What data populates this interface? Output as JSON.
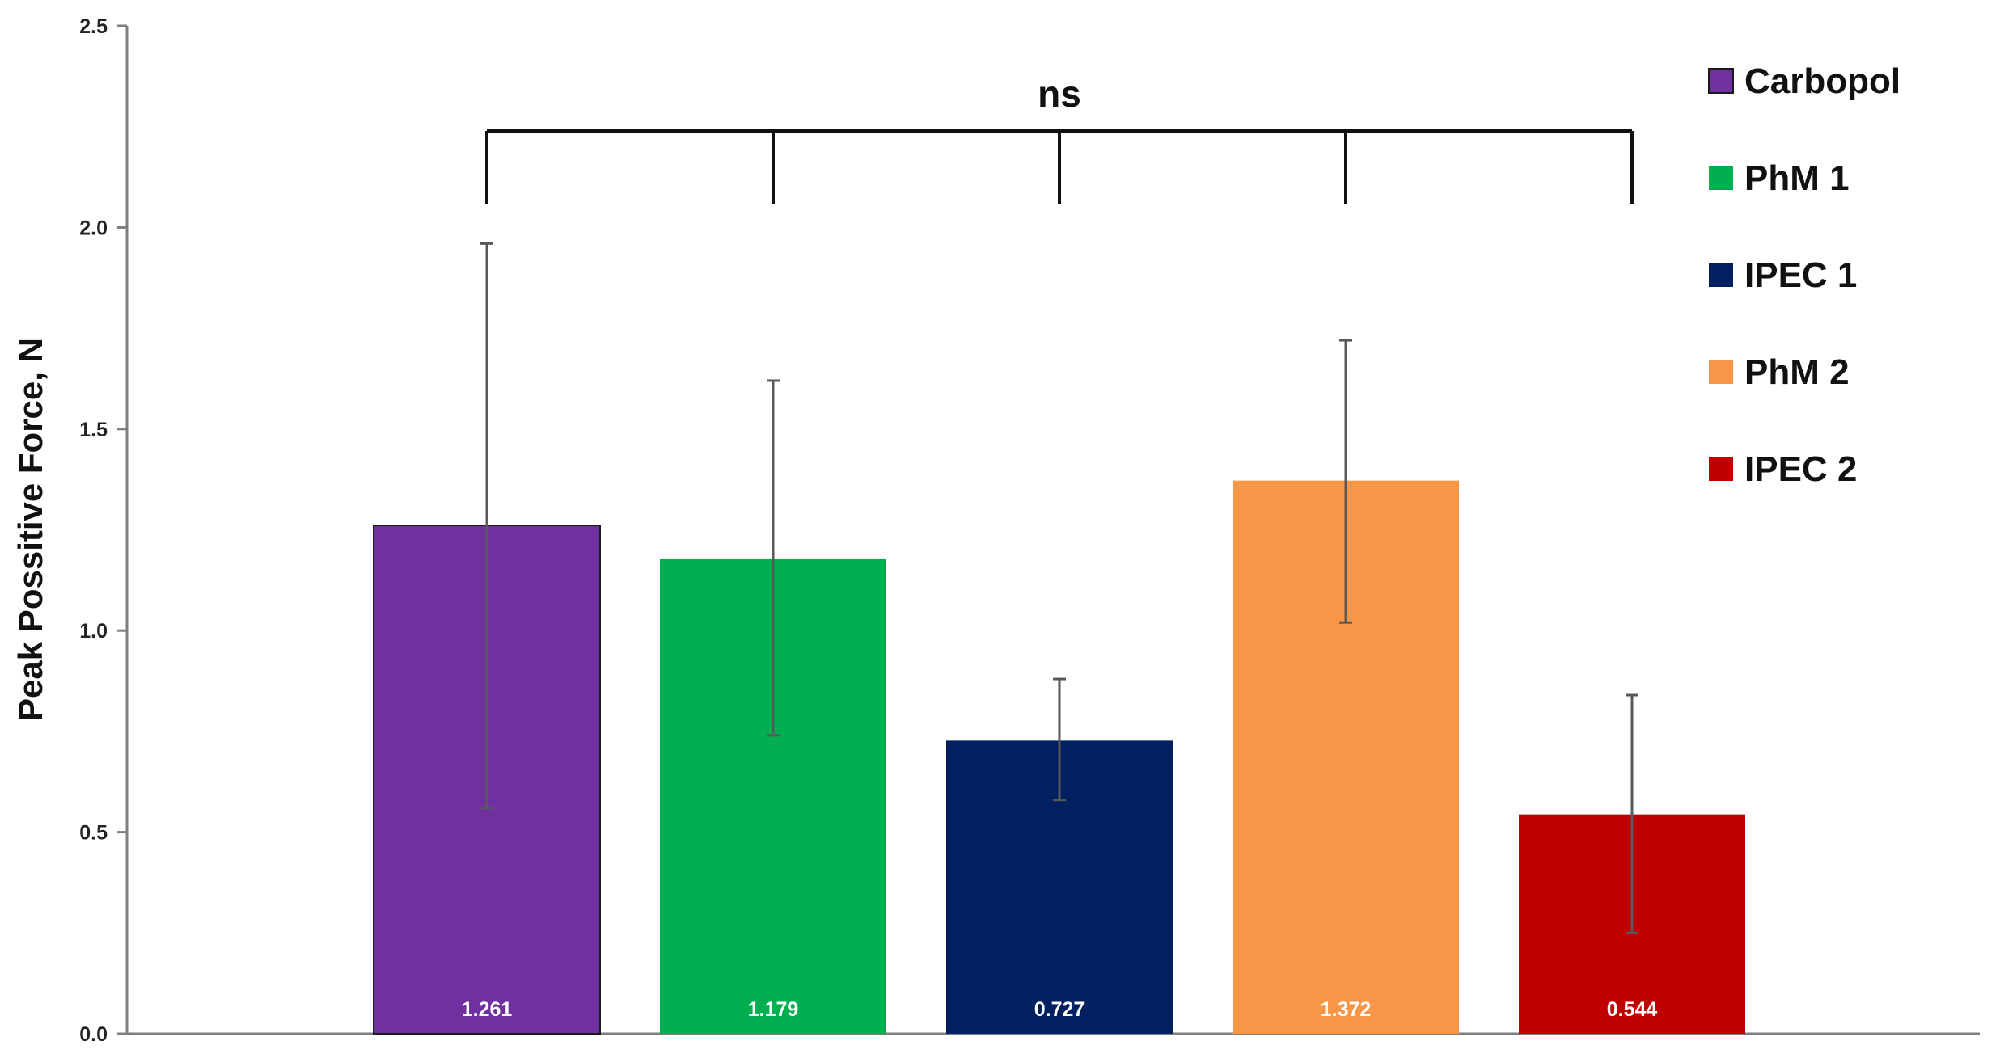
{
  "chart_data": {
    "type": "bar",
    "title": "",
    "xlabel": "",
    "ylabel": "Peak Possitive Force, N",
    "ylim": [
      0,
      2.5
    ],
    "yticks": [
      "0.0",
      "0.5",
      "1.0",
      "1.5",
      "2.0",
      "2.5"
    ],
    "grid": false,
    "legend_position": "right",
    "categories": [
      "Carbopol",
      "PhM 1",
      "IPEC 1",
      "PhM 2",
      "IPEC 2"
    ],
    "values": [
      1.261,
      1.179,
      0.727,
      1.372,
      0.544
    ],
    "value_labels": [
      "1.261",
      "1.179",
      "0.727",
      "1.372",
      "0.544"
    ],
    "error_upper": [
      1.96,
      1.62,
      0.88,
      1.72,
      0.84
    ],
    "error_lower": [
      0.56,
      0.74,
      0.58,
      1.02,
      0.25
    ],
    "colors": [
      "#7030a0",
      "#00b050",
      "#002060",
      "#f79646",
      "#c00000"
    ],
    "significance": {
      "label": "ns"
    },
    "legend": [
      {
        "label": "Carbopol",
        "color": "#7030a0"
      },
      {
        "label": "PhM 1",
        "color": "#00b050"
      },
      {
        "label": "IPEC 1",
        "color": "#002060"
      },
      {
        "label": "PhM 2",
        "color": "#f79646"
      },
      {
        "label": "IPEC 2",
        "color": "#c00000"
      }
    ]
  }
}
